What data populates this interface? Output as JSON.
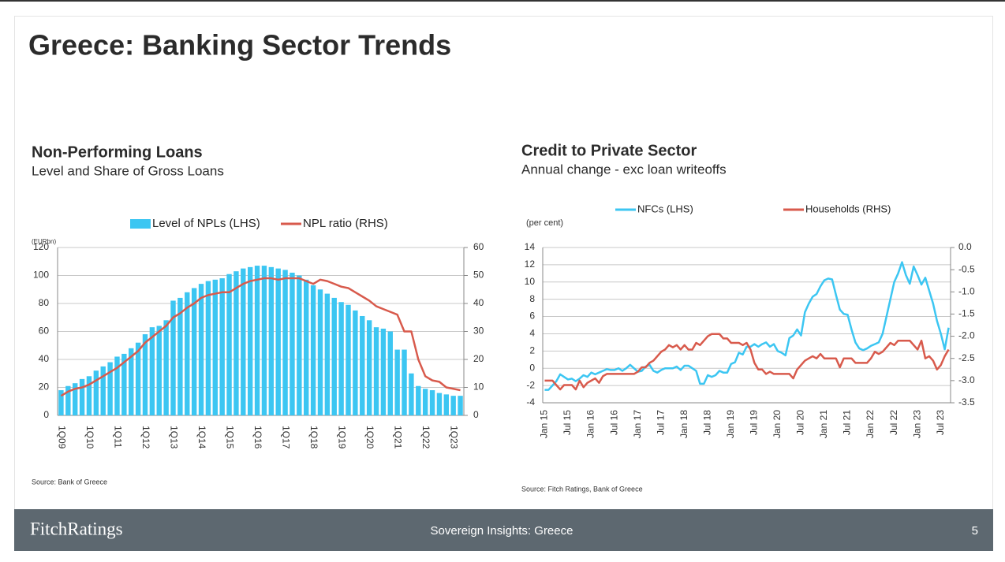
{
  "title": "Greece: Banking Sector Trends",
  "footer": {
    "logo": "FitchRatings",
    "text": "Sovereign Insights: Greece",
    "page": 5
  },
  "chart_data": [
    {
      "type": "combo",
      "title": "Non-Performing Loans",
      "subtitle": "Level and Share of Gross Loans",
      "y_label": "(EURbn)",
      "source": "Source: Bank of Greece",
      "categories": [
        "1Q09",
        null,
        null,
        null,
        "1Q10",
        null,
        null,
        null,
        "1Q11",
        null,
        null,
        null,
        "1Q12",
        null,
        null,
        null,
        "1Q13",
        null,
        null,
        null,
        "1Q14",
        null,
        null,
        null,
        "1Q15",
        null,
        null,
        null,
        "1Q16",
        null,
        null,
        null,
        "1Q17",
        null,
        null,
        null,
        "1Q18",
        null,
        null,
        null,
        "1Q19",
        null,
        null,
        null,
        "1Q20",
        null,
        null,
        null,
        "1Q21",
        null,
        null,
        null,
        "1Q22",
        null,
        null,
        null,
        "1Q23",
        null
      ],
      "series": [
        {
          "name": "Level of NPLs (LHS)",
          "type": "bar",
          "color": "#3cc6f2",
          "values": [
            18,
            21,
            23,
            26,
            28,
            32,
            35,
            38,
            42,
            44,
            48,
            52,
            58,
            63,
            64,
            68,
            82,
            84,
            88,
            91,
            94,
            96,
            97,
            98,
            101,
            103,
            105,
            106,
            107,
            107,
            106,
            105,
            104,
            102,
            100,
            97,
            93,
            90,
            87,
            84,
            81,
            79,
            75,
            71,
            68,
            63,
            62,
            60,
            47,
            47,
            30,
            21,
            19,
            18,
            16,
            15,
            14,
            14
          ]
        },
        {
          "name": "NPL ratio (RHS)",
          "type": "line",
          "axis": "y2",
          "color": "#d85a4c",
          "values": [
            7,
            8.5,
            9.5,
            10,
            11,
            12.5,
            14,
            15.5,
            17,
            19,
            21,
            23,
            26,
            28,
            30,
            32,
            35,
            36.5,
            38.5,
            40,
            42,
            43,
            43.5,
            44,
            44,
            45.5,
            47,
            48,
            48.5,
            49,
            49,
            48.5,
            49,
            49,
            49,
            48,
            47,
            48.5,
            48,
            47,
            46,
            45.5,
            44,
            42.5,
            41,
            39,
            38,
            37,
            36,
            30,
            30,
            20,
            14,
            12.5,
            12,
            10,
            9.5,
            9
          ]
        }
      ],
      "ylim": [
        0,
        120
      ],
      "yticks": [
        0,
        20,
        40,
        60,
        80,
        100,
        120
      ],
      "y2lim": [
        0,
        60
      ],
      "y2ticks": [
        0,
        10,
        20,
        30,
        40,
        50,
        60
      ],
      "grid": true,
      "legend": "top"
    },
    {
      "type": "line",
      "title": "Credit to Private Sector",
      "subtitle": "Annual change - exc loan writeoffs",
      "y_label": "(per cent)",
      "source": "Source: Fitch Ratings, Bank of Greece",
      "categories": [
        "Jan 15",
        null,
        null,
        null,
        null,
        null,
        "Jul 15",
        null,
        null,
        null,
        null,
        null,
        "Jan 16",
        null,
        null,
        null,
        null,
        null,
        "Jul 16",
        null,
        null,
        null,
        null,
        null,
        "Jan 17",
        null,
        null,
        null,
        null,
        null,
        "Jul 17",
        null,
        null,
        null,
        null,
        null,
        "Jan 18",
        null,
        null,
        null,
        null,
        null,
        "Jul 18",
        null,
        null,
        null,
        null,
        null,
        "Jan 19",
        null,
        null,
        null,
        null,
        null,
        "Jul 19",
        null,
        null,
        null,
        null,
        null,
        "Jan 20",
        null,
        null,
        null,
        null,
        null,
        "Jul 20",
        null,
        null,
        null,
        null,
        null,
        "Jan 21",
        null,
        null,
        null,
        null,
        null,
        "Jul 21",
        null,
        null,
        null,
        null,
        null,
        "Jan 22",
        null,
        null,
        null,
        null,
        null,
        "Jul 22",
        null,
        null,
        null,
        null,
        null,
        "Jan 23",
        null,
        null,
        null,
        null,
        null,
        "Jul 23",
        null,
        null
      ],
      "series": [
        {
          "name": "NFCs (LHS)",
          "color": "#3cc6f2",
          "values": [
            -2.5,
            -2.5,
            -2,
            -1.5,
            -0.7,
            -1,
            -1.3,
            -1.2,
            -1.5,
            -1.2,
            -0.8,
            -1,
            -0.5,
            -0.7,
            -0.5,
            -0.3,
            -0.1,
            -0.2,
            -0.2,
            0,
            -0.3,
            0,
            0.4,
            0,
            -0.4,
            -0.3,
            0.2,
            0.4,
            -0.3,
            -0.5,
            -0.2,
            0,
            0,
            0,
            0.2,
            -0.2,
            0.3,
            0.3,
            0,
            -0.3,
            -1.8,
            -1.8,
            -0.8,
            -1,
            -0.8,
            -0.3,
            -0.5,
            -0.5,
            0.5,
            0.7,
            1.8,
            1.6,
            2.5,
            2.5,
            2.8,
            2.5,
            2.8,
            3,
            2.5,
            2.8,
            2,
            1.8,
            1.5,
            3.5,
            3.8,
            4.5,
            3.8,
            6.5,
            7.5,
            8.3,
            8.6,
            9.5,
            10.2,
            10.4,
            10.3,
            8.5,
            6.8,
            6.3,
            6.2,
            4.5,
            3,
            2.3,
            2.1,
            2.3,
            2.6,
            2.8,
            3,
            4,
            6,
            8,
            10,
            11,
            12.3,
            10.8,
            9.8,
            11.8,
            10.8,
            9.7,
            10.5,
            9,
            7.5,
            5.5,
            4,
            2.2,
            4.7
          ]
        },
        {
          "name": "Households (RHS)",
          "color": "#d85a4c",
          "axis": "y2",
          "values": [
            -3,
            -3,
            -3,
            -3.1,
            -3.2,
            -3.1,
            -3.1,
            -3.1,
            -3.2,
            -3,
            -3.15,
            -3.05,
            -3,
            -2.95,
            -3.05,
            -2.9,
            -2.85,
            -2.85,
            -2.85,
            -2.85,
            -2.85,
            -2.85,
            -2.85,
            -2.85,
            -2.8,
            -2.7,
            -2.7,
            -2.6,
            -2.55,
            -2.45,
            -2.35,
            -2.3,
            -2.2,
            -2.25,
            -2.2,
            -2.3,
            -2.2,
            -2.3,
            -2.3,
            -2.15,
            -2.2,
            -2.1,
            -2,
            -1.95,
            -1.95,
            -1.95,
            -2.05,
            -2.05,
            -2.15,
            -2.15,
            -2.15,
            -2.2,
            -2.15,
            -2.3,
            -2.6,
            -2.75,
            -2.75,
            -2.85,
            -2.8,
            -2.85,
            -2.85,
            -2.85,
            -2.85,
            -2.85,
            -2.95,
            -2.75,
            -2.65,
            -2.55,
            -2.5,
            -2.45,
            -2.5,
            -2.4,
            -2.5,
            -2.5,
            -2.5,
            -2.5,
            -2.7,
            -2.5,
            -2.5,
            -2.5,
            -2.6,
            -2.6,
            -2.6,
            -2.6,
            -2.5,
            -2.35,
            -2.4,
            -2.35,
            -2.25,
            -2.15,
            -2.2,
            -2.1,
            -2.1,
            -2.1,
            -2.1,
            -2.2,
            -2.3,
            -2.1,
            -2.5,
            -2.45,
            -2.55,
            -2.75,
            -2.65,
            -2.45,
            -2.3
          ]
        }
      ],
      "ylim": [
        -4,
        14
      ],
      "yticks": [
        -4,
        -2,
        0,
        2,
        4,
        6,
        8,
        10,
        12,
        14
      ],
      "y2lim": [
        -3.5,
        0
      ],
      "y2ticks": [
        {
          "value": 0,
          "label": "0.0"
        },
        -0.5,
        {
          "value": -1,
          "label": "-1.0"
        },
        -1.5,
        {
          "value": -2,
          "label": "-2.0"
        },
        -2.5,
        {
          "value": -3,
          "label": "-3.0"
        },
        -3.5
      ],
      "grid": true,
      "legend": "top"
    }
  ]
}
